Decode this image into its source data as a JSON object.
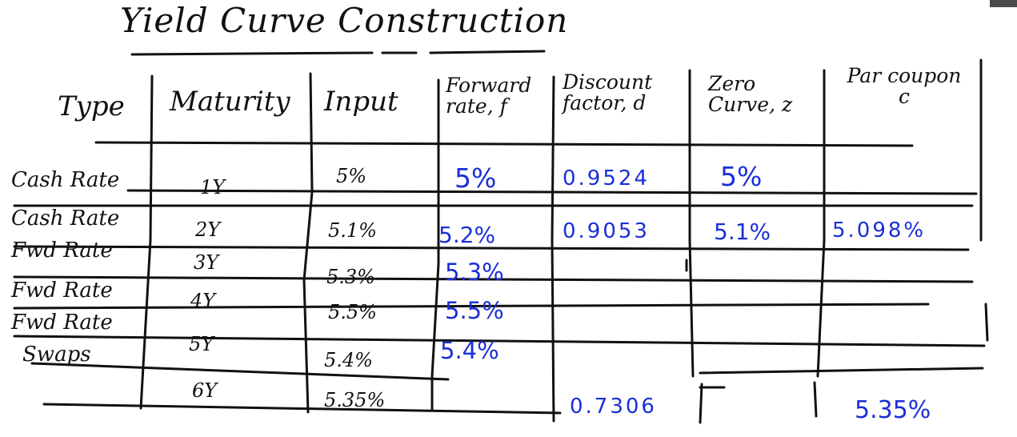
{
  "title": "Yield Curve Construction",
  "columns": {
    "type": "Type",
    "maturity": "Maturity",
    "input": "Input",
    "forward": "Forward\nrate, f",
    "discount": "Discount\nfactor, d",
    "zero": "Zero\nCurve, z",
    "par": "Par coupon\nc"
  },
  "rows": [
    {
      "type": "Cash Rate",
      "maturity": "1Y",
      "input": "5%",
      "forward": "5%",
      "discount": "0.9524",
      "zero": "5%",
      "par": ""
    },
    {
      "type": "Cash Rate",
      "maturity": "2Y",
      "input": "5.1%",
      "forward": "5.2%",
      "discount": "0.9053",
      "zero": "5.1%",
      "par": "5.098%"
    },
    {
      "type": "Fwd Rate",
      "maturity": "3Y",
      "input": "5.3%",
      "forward": "5.3%",
      "discount": "",
      "zero": "",
      "par": ""
    },
    {
      "type": "Fwd Rate",
      "maturity": "4Y",
      "input": "5.5%",
      "forward": "5.5%",
      "discount": "",
      "zero": "",
      "par": ""
    },
    {
      "type": "Fwd Rate",
      "maturity": "5Y",
      "input": "5.4%",
      "forward": "5.4%",
      "discount": "",
      "zero": "",
      "par": ""
    },
    {
      "type": "Swaps",
      "maturity": "",
      "input": "",
      "forward": "",
      "discount": "",
      "zero": "",
      "par": ""
    },
    {
      "type": "",
      "maturity": "6Y",
      "input": "5.35%",
      "forward": "",
      "discount": "0.7306",
      "zero": "",
      "par": "5.35%"
    }
  ],
  "colors": {
    "ink": "#111111",
    "blue_ink": "#1a2fd6",
    "background": "#ffffff"
  }
}
